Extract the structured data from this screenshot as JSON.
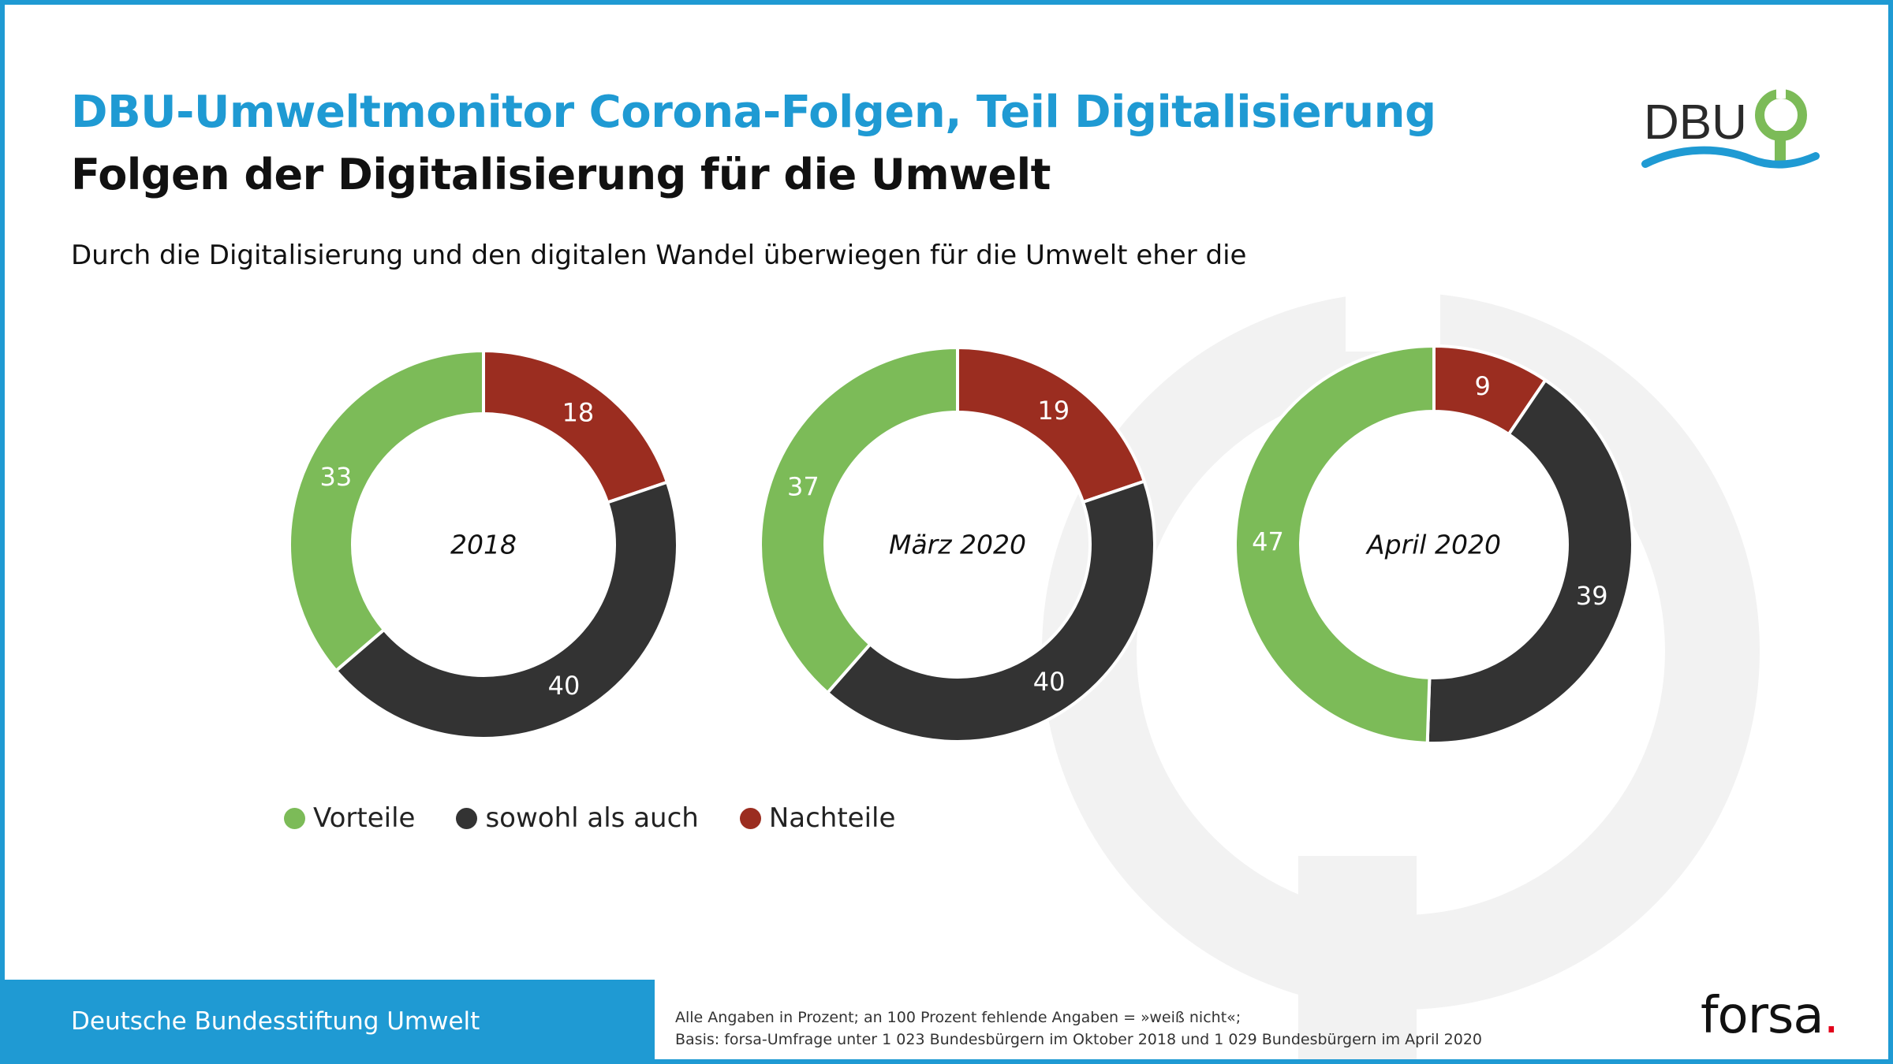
{
  "header": {
    "title": "DBU-Umweltmonitor Corona-Folgen, Teil Digitalisierung",
    "subtitle": "Folgen der Digitalisierung für die Umwelt",
    "question": "Durch die Digitalisierung und den digitalen Wandel überwiegen für die Umwelt eher die"
  },
  "logo": {
    "text": "DBU"
  },
  "colors": {
    "accent": "#1f9ad3",
    "vorteile": "#7cbb58",
    "sowohl": "#333333",
    "nachteile": "#9b2d20",
    "logo_green": "#7cbb58"
  },
  "chart_data": [
    {
      "type": "pie",
      "center_label": "2018",
      "categories": [
        "Vorteile",
        "sowohl als auch",
        "Nachteile"
      ],
      "values": [
        33,
        40,
        18
      ]
    },
    {
      "type": "pie",
      "center_label": "März 2020",
      "categories": [
        "Vorteile",
        "sowohl als auch",
        "Nachteile"
      ],
      "values": [
        37,
        40,
        19
      ]
    },
    {
      "type": "pie",
      "center_label": "April 2020",
      "categories": [
        "Vorteile",
        "sowohl als auch",
        "Nachteile"
      ],
      "values": [
        47,
        39,
        9
      ]
    }
  ],
  "legend": [
    {
      "label": "Vorteile"
    },
    {
      "label": "sowohl als auch"
    },
    {
      "label": "Nachteile"
    }
  ],
  "footer": {
    "org": "Deutsche Bundesstiftung Umwelt",
    "note_line1": "Alle Angaben in Prozent; an 100 Prozent fehlende Angaben = »weiß nicht«;",
    "note_line2": "Basis: forsa-Umfrage unter 1 023 Bundesbürgern im Oktober 2018 und 1 029 Bundesbürgern im April 2020",
    "brand": "forsa",
    "brand_dot": "."
  }
}
